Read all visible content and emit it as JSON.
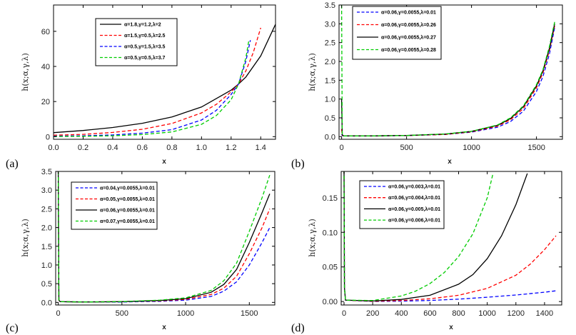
{
  "figure": {
    "panels": [
      {
        "panel_label": "(a)",
        "ylabel": "h(x;α,γ,λ)",
        "xlabel": "x",
        "xlim": [
          0,
          1.5
        ],
        "ylim": [
          -1.5,
          75
        ],
        "xticks": [
          "0.0",
          "0.2",
          "0.4",
          "0.6",
          "0.8",
          "1.0",
          "1.2",
          "1.4"
        ],
        "yticks": [
          "0",
          "20",
          "40",
          "60"
        ],
        "legend": [
          "α=1.8,γ=1.2,λ=2",
          "α=1.5,γ=0.5,λ=2.5",
          "α=0.5,γ=1.5,λ=3.5",
          "α=0.5,γ=0.5,λ=3.7"
        ]
      },
      {
        "panel_label": "(b)",
        "ylabel": "h(x;α,γ,λ)",
        "xlabel": "x",
        "xlim": [
          -20,
          1700
        ],
        "ylim": [
          -0.07,
          3.5
        ],
        "xticks": [
          "0",
          "500",
          "1000",
          "1500"
        ],
        "yticks": [
          "0.0",
          "0.5",
          "1.0",
          "1.5",
          "2.0",
          "2.5",
          "3.0",
          "3.5"
        ],
        "legend": [
          "α=0.06,γ=0.0055,λ=0.01",
          "α=0.06,γ=0.0055,λ=0.26",
          "α=0.06,γ=0.0055,λ=0.27",
          "α=0.06,γ=0.0055,λ=0.28"
        ]
      },
      {
        "panel_label": "(c)",
        "ylabel": "h(x;α,γ,λ)",
        "xlabel": "x",
        "xlim": [
          -20,
          1700
        ],
        "ylim": [
          -0.07,
          3.5
        ],
        "xticks": [
          "0",
          "500",
          "1000",
          "1500"
        ],
        "yticks": [
          "0.0",
          "0.5",
          "1.0",
          "1.5",
          "2.0",
          "2.5",
          "3.0",
          "3.5"
        ],
        "legend": [
          "α=0.04,γ=0.0055,λ=0.01",
          "α=0.05,γ=0.0055,λ=0.01",
          "α=0.06,γ=0.0055,λ=0.01",
          "α=0.07,γ=0.0055,λ=0.01"
        ]
      },
      {
        "panel_label": "(d)",
        "ylabel": "h(x;α,γ,λ)",
        "xlabel": "x",
        "xlim": [
          -20,
          1520
        ],
        "ylim": [
          -0.005,
          0.188
        ],
        "xticks": [
          "0",
          "200",
          "400",
          "600",
          "800",
          "1000",
          "1200",
          "1400"
        ],
        "yticks": [
          "0.00",
          "0.05",
          "0.10",
          "0.15"
        ],
        "legend": [
          "α=0.06,γ=0.003,λ=0.01",
          "α=0.06,γ=0.004,λ=0.01",
          "α=0.06,γ=0.005,λ=0.01",
          "α=0.06,γ=0.006,λ=0.01"
        ]
      }
    ]
  },
  "chart_data": [
    {
      "type": "line",
      "panel": "(a)",
      "xlabel": "x",
      "ylabel": "h(x;α,γ,λ)",
      "xlim": [
        0,
        1.5
      ],
      "ylim": [
        -1.5,
        75
      ],
      "grid": false,
      "legend_position": "top-center",
      "series": [
        {
          "name": "α=1.8,γ=1.2,λ=2",
          "color": "#000000",
          "dash": "solid",
          "x": [
            0,
            0.2,
            0.4,
            0.6,
            0.8,
            1.0,
            1.2,
            1.25,
            1.3,
            1.4,
            1.5
          ],
          "y": [
            2.3,
            3.5,
            5.2,
            7.6,
            11.2,
            16.9,
            26.5,
            30.0,
            34.0,
            46.0,
            64.0
          ]
        },
        {
          "name": "α=1.5,γ=0.5,λ=2.5",
          "color": "#ff0000",
          "dash": "dashed",
          "x": [
            0,
            0.2,
            0.4,
            0.6,
            0.8,
            1.0,
            1.1,
            1.2,
            1.25,
            1.3,
            1.35,
            1.4
          ],
          "y": [
            0.8,
            1.3,
            2.4,
            4.2,
            7.5,
            13.5,
            18.4,
            25.5,
            30.0,
            37.5,
            48.0,
            62.0
          ]
        },
        {
          "name": "α=0.5,γ=1.5,λ=3.5",
          "color": "#0000ff",
          "dash": "dashed",
          "x": [
            0,
            0.2,
            0.4,
            0.6,
            0.8,
            1.0,
            1.1,
            1.2,
            1.25,
            1.3,
            1.33
          ],
          "y": [
            0.3,
            0.5,
            1.0,
            2.0,
            4.0,
            9.5,
            15.0,
            24.0,
            30.0,
            43.0,
            55.0
          ]
        },
        {
          "name": "α=0.5,γ=0.5,λ=3.7",
          "color": "#00cc00",
          "dash": "dashed",
          "x": [
            0,
            0.2,
            0.4,
            0.6,
            0.8,
            1.0,
            1.1,
            1.2,
            1.25,
            1.3,
            1.32
          ],
          "y": [
            0.1,
            0.2,
            0.5,
            1.2,
            2.7,
            7.0,
            12.0,
            21.0,
            30.0,
            45.0,
            55.0
          ]
        }
      ]
    },
    {
      "type": "line",
      "panel": "(b)",
      "xlabel": "x",
      "ylabel": "h(x;α,γ,λ)",
      "xlim": [
        -20,
        1700
      ],
      "ylim": [
        -0.07,
        3.5
      ],
      "grid": false,
      "legend_position": "top-left",
      "series": [
        {
          "name": "α=0.06,γ=0.0055,λ=0.01",
          "color": "#0000ff",
          "dash": "dashed",
          "x": [
            0,
            5,
            15,
            200,
            500,
            800,
            1000,
            1200,
            1300,
            1400,
            1500,
            1550,
            1600,
            1640
          ],
          "y": [
            0.06,
            0.03,
            0.02,
            0.02,
            0.03,
            0.06,
            0.12,
            0.25,
            0.4,
            0.68,
            1.2,
            1.6,
            2.2,
            2.9
          ]
        },
        {
          "name": "α=0.06,γ=0.0055,λ=0.26",
          "color": "#ff0000",
          "dash": "dashed",
          "x": [
            0,
            5,
            15,
            200,
            500,
            800,
            1000,
            1200,
            1300,
            1400,
            1500,
            1550,
            1600,
            1640
          ],
          "y": [
            0.2,
            0.04,
            0.02,
            0.02,
            0.03,
            0.06,
            0.13,
            0.28,
            0.45,
            0.75,
            1.3,
            1.7,
            2.3,
            2.95
          ]
        },
        {
          "name": "α=0.06,γ=0.0055,λ=0.27",
          "color": "#000000",
          "dash": "solid",
          "x": [
            0,
            5,
            15,
            200,
            500,
            800,
            1000,
            1200,
            1300,
            1400,
            1500,
            1550,
            1600,
            1640
          ],
          "y": [
            1.0,
            0.05,
            0.02,
            0.02,
            0.03,
            0.07,
            0.14,
            0.3,
            0.48,
            0.8,
            1.35,
            1.75,
            2.35,
            3.0
          ]
        },
        {
          "name": "α=0.06,γ=0.0055,λ=0.28",
          "color": "#00cc00",
          "dash": "dashed",
          "x": [
            0,
            5,
            15,
            200,
            500,
            800,
            1000,
            1200,
            1300,
            1400,
            1500,
            1550,
            1600,
            1640
          ],
          "y": [
            3.5,
            0.06,
            0.02,
            0.02,
            0.03,
            0.07,
            0.14,
            0.31,
            0.5,
            0.82,
            1.38,
            1.78,
            2.4,
            3.05
          ]
        }
      ]
    },
    {
      "type": "line",
      "panel": "(c)",
      "xlabel": "x",
      "ylabel": "h(x;α,γ,λ)",
      "xlim": [
        -20,
        1700
      ],
      "ylim": [
        -0.07,
        3.5
      ],
      "grid": false,
      "legend_position": "top-left",
      "series": [
        {
          "name": "α=0.04,γ=0.0055,λ=0.01",
          "color": "#0000ff",
          "dash": "dashed",
          "x": [
            0,
            5,
            15,
            200,
            500,
            800,
            1000,
            1200,
            1300,
            1400,
            1500,
            1600,
            1660
          ],
          "y": [
            3.5,
            0.04,
            0.02,
            0.01,
            0.01,
            0.03,
            0.06,
            0.16,
            0.3,
            0.55,
            1.0,
            1.6,
            2.0
          ]
        },
        {
          "name": "α=0.05,γ=0.0055,λ=0.01",
          "color": "#ff0000",
          "dash": "dashed",
          "x": [
            0,
            5,
            15,
            200,
            500,
            800,
            1000,
            1200,
            1300,
            1400,
            1500,
            1600,
            1660
          ],
          "y": [
            3.5,
            0.05,
            0.02,
            0.01,
            0.02,
            0.04,
            0.08,
            0.21,
            0.38,
            0.7,
            1.3,
            2.0,
            2.5
          ]
        },
        {
          "name": "α=0.06,γ=0.0055,λ=0.01",
          "color": "#000000",
          "dash": "solid",
          "x": [
            0,
            5,
            15,
            200,
            500,
            800,
            1000,
            1200,
            1300,
            1400,
            1500,
            1600,
            1660
          ],
          "y": [
            3.5,
            0.06,
            0.02,
            0.01,
            0.02,
            0.05,
            0.1,
            0.27,
            0.48,
            0.88,
            1.6,
            2.4,
            2.9
          ]
        },
        {
          "name": "α=0.07,γ=0.0055,λ=0.01",
          "color": "#00cc00",
          "dash": "dashed",
          "x": [
            0,
            5,
            15,
            200,
            500,
            800,
            1000,
            1200,
            1300,
            1400,
            1500,
            1600,
            1660
          ],
          "y": [
            3.5,
            0.07,
            0.02,
            0.01,
            0.02,
            0.06,
            0.12,
            0.32,
            0.58,
            1.05,
            1.9,
            2.8,
            3.4
          ]
        }
      ]
    },
    {
      "type": "line",
      "panel": "(d)",
      "xlabel": "x",
      "ylabel": "h(x;α,γ,λ)",
      "xlim": [
        -20,
        1520
      ],
      "ylim": [
        -0.005,
        0.188
      ],
      "grid": false,
      "legend_position": "top-center",
      "series": [
        {
          "name": "α=0.06,γ=0.003,λ=0.01",
          "color": "#0000ff",
          "dash": "dashed",
          "x": [
            0,
            3,
            10,
            200,
            400,
            600,
            800,
            1000,
            1200,
            1400,
            1480
          ],
          "y": [
            0.19,
            0.02,
            0.002,
            0.0002,
            0.0006,
            0.0016,
            0.0035,
            0.0062,
            0.0095,
            0.0135,
            0.0155
          ]
        },
        {
          "name": "α=0.06,γ=0.004,λ=0.01",
          "color": "#ff0000",
          "dash": "dashed",
          "x": [
            0,
            3,
            10,
            200,
            400,
            600,
            800,
            1000,
            1200,
            1300,
            1400,
            1480
          ],
          "y": [
            0.19,
            0.02,
            0.002,
            0.0004,
            0.0015,
            0.004,
            0.009,
            0.019,
            0.038,
            0.054,
            0.075,
            0.095
          ]
        },
        {
          "name": "α=0.06,γ=0.005,λ=0.01",
          "color": "#000000",
          "dash": "solid",
          "x": [
            0,
            3,
            10,
            200,
            400,
            600,
            800,
            900,
            1000,
            1100,
            1200,
            1280
          ],
          "y": [
            0.19,
            0.02,
            0.002,
            0.0008,
            0.003,
            0.009,
            0.025,
            0.039,
            0.062,
            0.095,
            0.14,
            0.185
          ]
        },
        {
          "name": "α=0.06,γ=0.006,λ=0.01",
          "color": "#00cc00",
          "dash": "dashed",
          "x": [
            0,
            3,
            10,
            200,
            400,
            500,
            600,
            700,
            800,
            900,
            1000,
            1040
          ],
          "y": [
            0.19,
            0.02,
            0.002,
            0.0015,
            0.008,
            0.015,
            0.026,
            0.042,
            0.065,
            0.098,
            0.15,
            0.185
          ]
        }
      ]
    }
  ]
}
